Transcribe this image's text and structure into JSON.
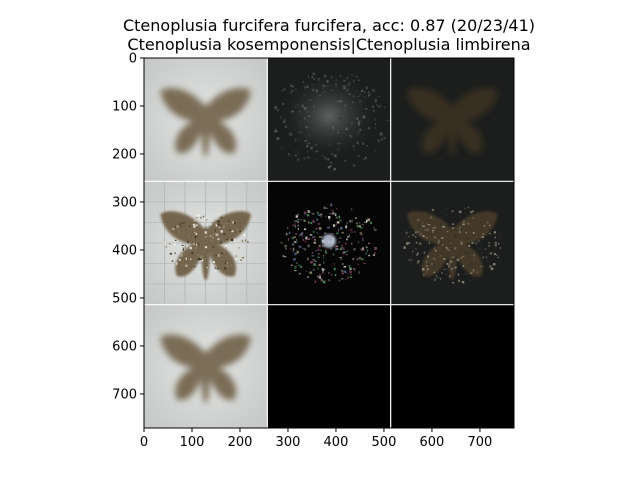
{
  "title": {
    "line1": "Ctenoplusia furcifera furcifera, acc: 0.87 (20/23/41)",
    "line2": "Ctenoplusia kosemponensis|Ctenoplusia limbirena"
  },
  "chart_data": {
    "type": "image-grid",
    "title": "Ctenoplusia furcifera furcifera, acc: 0.87 (20/23/41)\nCtenoplusia kosemponensis|Ctenoplusia limbirena",
    "xlim": [
      0,
      771
    ],
    "ylim": [
      771,
      0
    ],
    "xticks": [
      0,
      100,
      200,
      300,
      400,
      500,
      600,
      700
    ],
    "yticks": [
      0,
      100,
      200,
      300,
      400,
      500,
      600,
      700
    ],
    "grid_rows": 3,
    "grid_cols": 3,
    "tile_size": 257,
    "tiles": [
      {
        "row": 0,
        "col": 0,
        "kind": "moth-photo-blurred"
      },
      {
        "row": 0,
        "col": 1,
        "kind": "dark-saliency"
      },
      {
        "row": 0,
        "col": 2,
        "kind": "dark-moth-overlay"
      },
      {
        "row": 1,
        "col": 0,
        "kind": "moth-photo-sharp"
      },
      {
        "row": 1,
        "col": 1,
        "kind": "sparse-speckle"
      },
      {
        "row": 1,
        "col": 2,
        "kind": "speckled-moth"
      },
      {
        "row": 2,
        "col": 0,
        "kind": "moth-photo-blurred"
      },
      {
        "row": 2,
        "col": 1,
        "kind": "black"
      },
      {
        "row": 2,
        "col": 2,
        "kind": "black"
      }
    ]
  },
  "colors": {
    "background_light": "#d6d8d6",
    "moth_brown": "#6b5a40",
    "tile_dark": "#1c1e1d",
    "separator": "#ffffff"
  }
}
